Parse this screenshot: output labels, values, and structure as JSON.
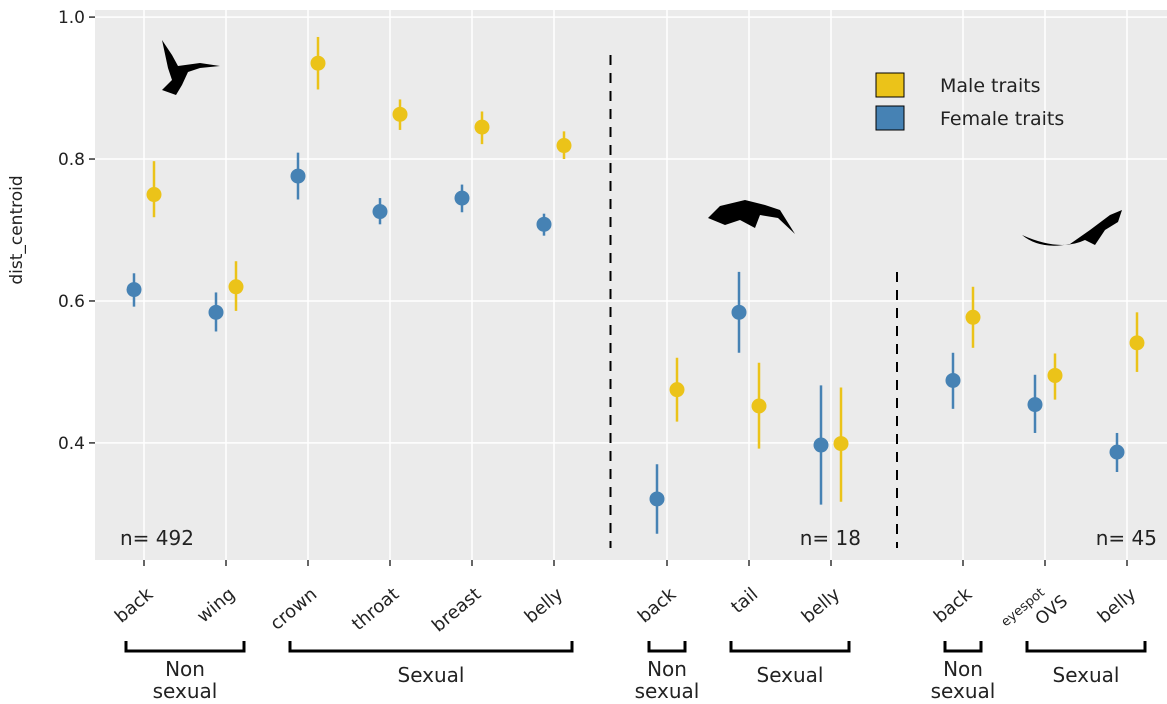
{
  "chart_data": {
    "type": "dotwhisker",
    "ylabel": "dist_centroid",
    "ylim": [
      0.235,
      1.01
    ],
    "yticks": [
      0.4,
      0.6,
      0.8,
      {
        "value": 1,
        "label": "1.0"
      }
    ],
    "grid": true,
    "legend": "top-right",
    "panels": [
      {
        "label": "n= 492",
        "groups": [
          {
            "label": "Non sexual",
            "categories": [
              "back",
              "wing"
            ]
          },
          {
            "label": "Sexual",
            "categories": [
              "crown",
              "throat",
              "breast",
              "belly"
            ]
          }
        ]
      },
      {
        "label": "n= 18",
        "groups": [
          {
            "label": "Non sexual",
            "categories": [
              "back"
            ]
          },
          {
            "label": "Sexual",
            "categories": [
              "tail",
              "belly"
            ]
          }
        ]
      },
      {
        "label": "n= 45",
        "groups": [
          {
            "label": "Non sexual",
            "categories": [
              "back"
            ]
          },
          {
            "label": "Sexual",
            "categories": [
              "eyespot OVS",
              "belly"
            ]
          }
        ]
      }
    ],
    "series": [
      {
        "name": "Male traits",
        "color": "#EBC319",
        "values": [
          0.75,
          0.62,
          0.935,
          0.863,
          0.845,
          0.819,
          0.475,
          0.452,
          0.399,
          0.577,
          0.495,
          0.541
        ],
        "lower": [
          0.718,
          0.586,
          0.898,
          0.841,
          0.821,
          0.8,
          0.43,
          0.392,
          0.317,
          0.534,
          0.461,
          0.5
        ],
        "upper": [
          0.797,
          0.656,
          0.972,
          0.884,
          0.867,
          0.839,
          0.52,
          0.513,
          0.478,
          0.62,
          0.526,
          0.584
        ]
      },
      {
        "name": "Female traits",
        "color": "#4682B4",
        "values": [
          0.616,
          0.584,
          0.776,
          0.726,
          0.745,
          0.708,
          0.321,
          0.584,
          0.397,
          0.488,
          0.454,
          0.387
        ],
        "lower": [
          0.592,
          0.557,
          0.743,
          0.708,
          0.725,
          0.692,
          0.272,
          0.527,
          0.313,
          0.448,
          0.414,
          0.359
        ],
        "upper": [
          0.639,
          0.612,
          0.809,
          0.745,
          0.764,
          0.723,
          0.37,
          0.641,
          0.481,
          0.527,
          0.496,
          0.414
        ]
      }
    ]
  }
}
